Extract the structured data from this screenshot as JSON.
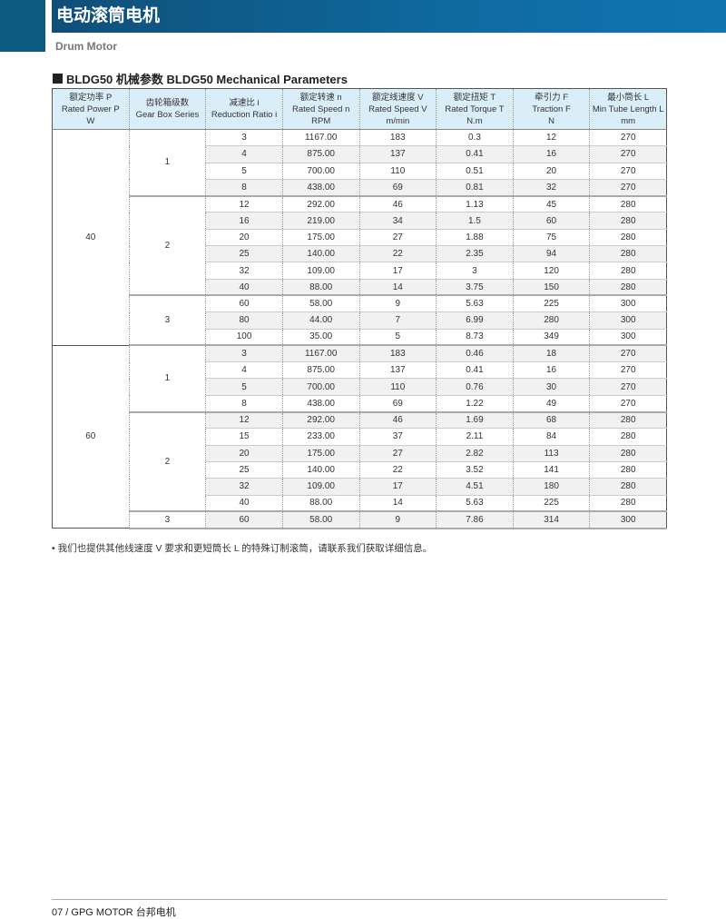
{
  "header": {
    "title": "电动滚筒电机",
    "subtitle": "Drum Motor"
  },
  "section_title": "BLDG50 机械参数 BLDG50 Mechanical Parameters",
  "table": {
    "columns": [
      [
        "额定功率 P",
        "Rated Power P",
        "W"
      ],
      [
        "齿轮箱级数",
        "Gear Box Series",
        ""
      ],
      [
        "减速比 i",
        "Reduction Ratio i",
        ""
      ],
      [
        "额定转速 n",
        "Rated Speed n",
        "RPM"
      ],
      [
        "额定线速度 V",
        "Rated Speed V",
        "m/min"
      ],
      [
        "额定扭矩 T",
        "Rated Torque T",
        "N.m"
      ],
      [
        "牵引力 F",
        "Traction F",
        "N"
      ],
      [
        "最小筒长 L",
        "Min Tube Length L",
        "mm"
      ]
    ],
    "groups": [
      {
        "power": "40",
        "gears": [
          {
            "series": "1",
            "rows": [
              [
                "3",
                "1167.00",
                "183",
                "0.3",
                "12",
                "270"
              ],
              [
                "4",
                "875.00",
                "137",
                "0.41",
                "16",
                "270"
              ],
              [
                "5",
                "700.00",
                "110",
                "0.51",
                "20",
                "270"
              ],
              [
                "8",
                "438.00",
                "69",
                "0.81",
                "32",
                "270"
              ]
            ]
          },
          {
            "series": "2",
            "rows": [
              [
                "12",
                "292.00",
                "46",
                "1.13",
                "45",
                "280"
              ],
              [
                "16",
                "219.00",
                "34",
                "1.5",
                "60",
                "280"
              ],
              [
                "20",
                "175.00",
                "27",
                "1.88",
                "75",
                "280"
              ],
              [
                "25",
                "140.00",
                "22",
                "2.35",
                "94",
                "280"
              ],
              [
                "32",
                "109.00",
                "17",
                "3",
                "120",
                "280"
              ],
              [
                "40",
                "88.00",
                "14",
                "3.75",
                "150",
                "280"
              ]
            ]
          },
          {
            "series": "3",
            "rows": [
              [
                "60",
                "58.00",
                "9",
                "5.63",
                "225",
                "300"
              ],
              [
                "80",
                "44.00",
                "7",
                "6.99",
                "280",
                "300"
              ],
              [
                "100",
                "35.00",
                "5",
                "8.73",
                "349",
                "300"
              ]
            ]
          }
        ]
      },
      {
        "power": "60",
        "gears": [
          {
            "series": "1",
            "rows": [
              [
                "3",
                "1167.00",
                "183",
                "0.46",
                "18",
                "270"
              ],
              [
                "4",
                "875.00",
                "137",
                "0.41",
                "16",
                "270"
              ],
              [
                "5",
                "700.00",
                "110",
                "0.76",
                "30",
                "270"
              ],
              [
                "8",
                "438.00",
                "69",
                "1.22",
                "49",
                "270"
              ]
            ]
          },
          {
            "series": "2",
            "rows": [
              [
                "12",
                "292.00",
                "46",
                "1.69",
                "68",
                "280"
              ],
              [
                "15",
                "233.00",
                "37",
                "2.11",
                "84",
                "280"
              ],
              [
                "20",
                "175.00",
                "27",
                "2.82",
                "113",
                "280"
              ],
              [
                "25",
                "140.00",
                "22",
                "3.52",
                "141",
                "280"
              ],
              [
                "32",
                "109.00",
                "17",
                "4.51",
                "180",
                "280"
              ],
              [
                "40",
                "88.00",
                "14",
                "5.63",
                "225",
                "280"
              ]
            ]
          },
          {
            "series": "3",
            "rows": [
              [
                "60",
                "58.00",
                "9",
                "7.86",
                "314",
                "300"
              ]
            ]
          }
        ]
      }
    ]
  },
  "note": "• 我们也提供其他线速度 V 要求和更短筒长 L 的特殊订制滚筒，请联系我们获取详细信息。",
  "footer": "07  /  GPG MOTOR 台邦电机"
}
